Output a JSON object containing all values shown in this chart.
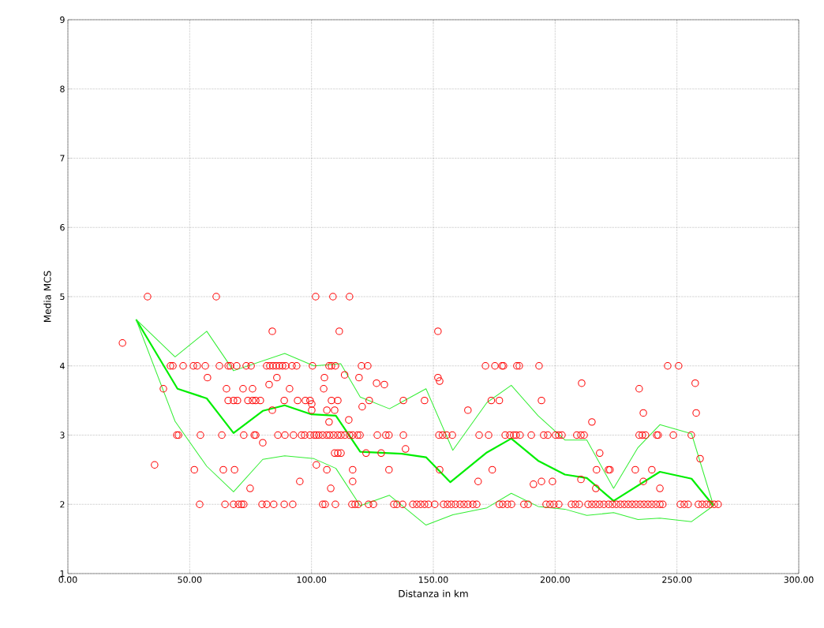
{
  "chart_data": {
    "type": "scatter",
    "xlabel": "Distanza in km",
    "ylabel": "Media MCS",
    "xlim": [
      0,
      300
    ],
    "ylim": [
      1,
      9
    ],
    "xticks": [
      {
        "value": 0,
        "label": "0.00"
      },
      {
        "value": 50,
        "label": "50.00"
      },
      {
        "value": 100,
        "label": "100.00"
      },
      {
        "value": 150,
        "label": "150.00"
      },
      {
        "value": 200,
        "label": "200.00"
      },
      {
        "value": 250,
        "label": "250.00"
      },
      {
        "value": 300,
        "label": "300.00"
      }
    ],
    "yticks": [
      1,
      2,
      3,
      4,
      5,
      6,
      7,
      8,
      9
    ],
    "grid": true,
    "marker": "none",
    "series": [
      {
        "color": "#ff0000",
        "marker": "circle",
        "x": [
          22.4,
          32.7,
          35.6,
          39.2,
          42.1,
          43.1,
          44.7,
          45.4,
          47.3,
          51.5,
          53.1,
          51.9,
          54.4,
          54.1,
          56.4,
          57.3,
          60.9,
          62.2,
          63.2,
          63.8,
          64.5,
          65.1,
          65.8,
          66.7,
          65.8,
          68,
          69.6,
          68,
          70,
          71.3,
          72.2,
          68.4,
          69.3,
          71.9,
          72.2,
          73.2,
          75.2,
          73.9,
          75.8,
          77.1,
          74.8,
          75.8,
          76.5,
          77.1,
          79,
          79.7,
          81.6,
          80,
          81.6,
          82.9,
          84.2,
          85.5,
          86.8,
          88.1,
          89.4,
          82.6,
          83.9,
          83.9,
          84.5,
          85.8,
          86.2,
          88.8,
          88.8,
          89.1,
          91,
          92,
          93.9,
          92.3,
          92.6,
          94.3,
          95.2,
          95.9,
          97.2,
          97.5,
          99.4,
          99.4,
          100.4,
          100.1,
          100.1,
          101.1,
          102,
          103,
          101.7,
          102,
          104.6,
          106.3,
          104.6,
          105.6,
          105,
          105.3,
          106.3,
          106.3,
          107.2,
          108.2,
          109.8,
          107.2,
          107.5,
          109.1,
          110.8,
          112.1,
          113.7,
          107.9,
          108.2,
          108.8,
          109.5,
          109.8,
          109.5,
          110.8,
          112.1,
          110.8,
          111.4,
          113.6,
          115.3,
          115.6,
          115.6,
          116.9,
          116.6,
          117.9,
          116.9,
          116.9,
          118.9,
          119.9,
          119.2,
          119.5,
          120.5,
          120.8,
          122.4,
          123.1,
          123.7,
          123.4,
          125.4,
          126.7,
          127,
          128.6,
          129.9,
          130.5,
          131.8,
          131.8,
          133.8,
          135.1,
          137.7,
          137.7,
          138.6,
          137.4,
          141.6,
          143.2,
          144.8,
          146.4,
          148,
          146.4,
          150.6,
          151.9,
          152.6,
          151.9,
          152.3,
          153.8,
          152.6,
          154.2,
          155.8,
          157.4,
          159.1,
          161,
          162.6,
          164.2,
          155.5,
          157.8,
          164.2,
          166.2,
          167.8,
          168.4,
          168.8,
          172.7,
          171.4,
          173.8,
          177.1,
          174.2,
          175.3,
          178.2,
          178.8,
          177.1,
          178.5,
          180.4,
          182.1,
          179.5,
          181.4,
          183,
          184,
          185.6,
          184.3,
          185.3,
          187.2,
          188.9,
          190.2,
          191.1,
          193.4,
          194.4,
          194.4,
          195.3,
          197,
          196.3,
          197.9,
          198.9,
          200.2,
          201.5,
          202.8,
          199.5,
          201.5,
          206.7,
          208.3,
          209.9,
          208.9,
          210.6,
          211.9,
          210.9,
          210.6,
          213.5,
          215.1,
          216.7,
          218.3,
          220,
          215.1,
          216.7,
          217,
          218.3,
          221.9,
          222.5,
          221.9,
          223.5,
          225.1,
          226.8,
          228.4,
          230,
          231.6,
          233.2,
          234.9,
          236.5,
          238.1,
          239.7,
          241.4,
          243,
          244.2,
          232.9,
          234.5,
          234.5,
          235.8,
          237.1,
          236.2,
          236.2,
          239.7,
          241.7,
          242.3,
          243,
          246.2,
          248.5,
          250.7,
          251.4,
          253,
          254.6,
          255.9,
          257.5,
          257.9,
          259.5,
          258.8,
          260.4,
          262.1,
          263.7,
          265.3,
          266.9
        ],
        "values": [
          4.33,
          5,
          2.57,
          3.67,
          4,
          4,
          3,
          3,
          4,
          4,
          4,
          2.5,
          3,
          2,
          4,
          3.83,
          5,
          4,
          3,
          2.5,
          2,
          3.67,
          4,
          4,
          3.5,
          3.5,
          3.5,
          2,
          2,
          2,
          2,
          2.5,
          4,
          3.67,
          3,
          4,
          4,
          3.5,
          3.5,
          3.5,
          2.23,
          3.67,
          3,
          3,
          3.5,
          2,
          2,
          2.89,
          4,
          4,
          4,
          4,
          4,
          4,
          4,
          3.73,
          4.5,
          3.36,
          2,
          3.83,
          3,
          2,
          3.5,
          3,
          3.67,
          4,
          4,
          2,
          3,
          3.5,
          2.33,
          3,
          3,
          3.5,
          3.5,
          3,
          4,
          3.45,
          3.36,
          3,
          3,
          3,
          5,
          2.57,
          3,
          3,
          2,
          2,
          3.67,
          3.83,
          3.36,
          2.5,
          4,
          4,
          4,
          3.19,
          3,
          3,
          3,
          3,
          3,
          2.23,
          3.5,
          5,
          3.36,
          2,
          2.74,
          2.74,
          2.74,
          3.5,
          4.5,
          3.87,
          3.22,
          5,
          3,
          3,
          2,
          2,
          2.5,
          2.33,
          3,
          3,
          2,
          3.83,
          4,
          3.41,
          2.74,
          4,
          3.5,
          2,
          2,
          3.75,
          3,
          2.74,
          3.73,
          3,
          3,
          2.5,
          2,
          2,
          3,
          3.5,
          2.8,
          2,
          2,
          2,
          2,
          2,
          2,
          3.5,
          2,
          3.83,
          3.78,
          4.5,
          3,
          3,
          2.5,
          2,
          2,
          2,
          2,
          2,
          2,
          2,
          3,
          3,
          3.36,
          2,
          2,
          2.33,
          3,
          3,
          4,
          3.5,
          3.5,
          2.5,
          4,
          4,
          4,
          2,
          2,
          2,
          2,
          3,
          3,
          3,
          3,
          3,
          4,
          4,
          2,
          2,
          3,
          2.29,
          4,
          3.5,
          2.33,
          3,
          3,
          2,
          2,
          2.33,
          3,
          3,
          3,
          2,
          2,
          2,
          2,
          2,
          3,
          3,
          3,
          3.75,
          2.36,
          2,
          2,
          2,
          2,
          2,
          3.19,
          2.23,
          2.5,
          2.74,
          2.5,
          2.5,
          2,
          2,
          2,
          2,
          2,
          2,
          2,
          2,
          2,
          2,
          2,
          2,
          2,
          2,
          2,
          2.5,
          3.67,
          3,
          3,
          3,
          3.32,
          2.33,
          2.5,
          3,
          3,
          2.23,
          4,
          3,
          4,
          2,
          2,
          2,
          3,
          3.75,
          3.32,
          2.66,
          2,
          2,
          2,
          2,
          2,
          2
        ]
      },
      {
        "type": "line",
        "color": "#00ee00",
        "x": [
          28,
          45,
          57,
          68,
          80,
          89,
          100,
          110,
          120,
          137,
          147,
          157,
          172,
          182,
          193,
          204,
          213,
          224,
          243,
          256,
          265
        ],
        "values": [
          4.67,
          3.67,
          3.53,
          3.03,
          3.35,
          3.43,
          3.3,
          3.28,
          2.76,
          2.73,
          2.68,
          2.32,
          2.75,
          2.95,
          2.63,
          2.43,
          2.38,
          2.05,
          2.47,
          2.37,
          1.98
        ]
      },
      {
        "type": "line",
        "color": "#33ee33",
        "x": [
          28,
          44,
          57,
          68,
          89,
          101,
          112,
          120,
          132,
          147,
          158,
          172,
          182,
          193,
          204,
          213,
          224,
          234,
          243,
          256,
          265
        ],
        "values": [
          4.67,
          4.13,
          4.5,
          3.93,
          4.18,
          4.0,
          4.03,
          3.55,
          3.38,
          3.67,
          2.78,
          3.47,
          3.72,
          3.28,
          2.93,
          2.93,
          2.23,
          2.82,
          3.15,
          3.02,
          1.98
        ]
      },
      {
        "type": "line",
        "color": "#33ee33",
        "x": [
          28,
          44,
          57,
          68,
          80,
          89,
          101,
          110,
          120,
          132,
          147,
          158,
          172,
          182,
          193,
          204,
          213,
          224,
          234,
          243,
          256,
          265
        ],
        "values": [
          4.67,
          3.2,
          2.55,
          2.18,
          2.65,
          2.7,
          2.66,
          2.52,
          1.98,
          2.13,
          1.7,
          1.85,
          1.95,
          2.16,
          1.97,
          1.93,
          1.84,
          1.88,
          1.78,
          1.8,
          1.75,
          1.98
        ]
      }
    ]
  }
}
